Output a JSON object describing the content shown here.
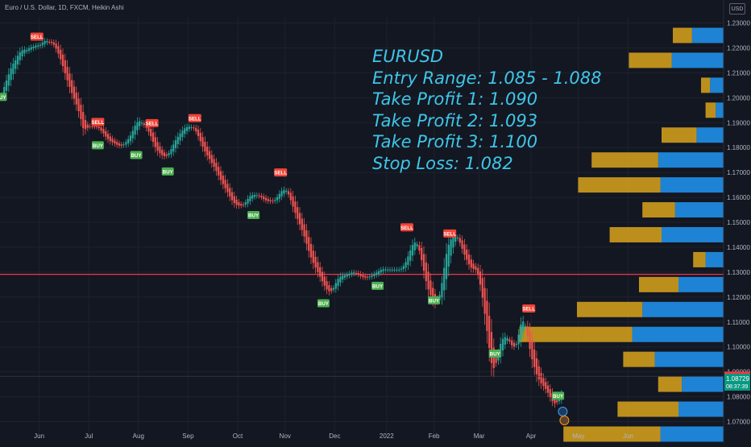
{
  "header": {
    "title": "Euro / U.S. Dollar, 1D, FXCM, Heikin Ashi",
    "currency": "USD"
  },
  "annotation": {
    "lines": [
      "EURUSD",
      "Entry Range: 1.085 - 1.088",
      "Take Profit 1: 1.090",
      "Take Profit 2: 1.093",
      "Take Profit 3: 1.100",
      "Stop Loss: 1.082"
    ],
    "color": "#3fc6e8"
  },
  "colors": {
    "background": "#131722",
    "grid": "#1e222d",
    "up": "#26a69a",
    "down": "#ef5350",
    "hline": "#f23645",
    "buy": "#4caf50",
    "sell": "#f44336",
    "vp_up": "#2196f3",
    "vp_down": "#dba51c",
    "text": "#b2b5be"
  },
  "chart_data": {
    "type": "candlestick",
    "title": "Euro / U.S. Dollar, 1D, FXCM, Heikin Ashi",
    "y_axis": {
      "ticks": [
        "1.23000",
        "1.22000",
        "1.21000",
        "1.20000",
        "1.19000",
        "1.18000",
        "1.17000",
        "1.16000",
        "1.15000",
        "1.14000",
        "1.13000",
        "1.12000",
        "1.11000",
        "1.10000",
        "1.09000",
        "1.08000",
        "1.07000"
      ],
      "range": [
        1.0675,
        1.2345
      ],
      "scale": "linear"
    },
    "x_axis": {
      "ticks": [
        "Jun",
        "Jul",
        "Aug",
        "Sep",
        "Oct",
        "Nov",
        "Dec",
        "2022",
        "Feb",
        "Mar",
        "Apr",
        "May",
        "Jun"
      ],
      "tick_dates": [
        "2021-06-01",
        "2021-07-01",
        "2021-08-01",
        "2021-09-01",
        "2021-10-01",
        "2021-11-01",
        "2021-12-01",
        "2022-01-01",
        "2022-02-01",
        "2022-03-01",
        "2022-04-01",
        "2022-05-01",
        "2022-06-01"
      ]
    },
    "start_date": "2021-05-07",
    "series_close": [
      1.2012,
      1.2043,
      1.2069,
      1.2094,
      1.2118,
      1.2137,
      1.215,
      1.2168,
      1.2182,
      1.219,
      1.2193,
      1.2191,
      1.2198,
      1.2203,
      1.2205,
      1.2209,
      1.221,
      1.2212,
      1.2221,
      1.2228,
      1.2227,
      1.2224,
      1.222,
      1.2213,
      1.2197,
      1.2177,
      1.2154,
      1.2127,
      1.2098,
      1.207,
      1.2044,
      1.2019,
      1.1996,
      1.1973,
      1.1946,
      1.1914,
      1.1878,
      1.1874,
      1.1879,
      1.1885,
      1.1885,
      1.1884,
      1.1883,
      1.1878,
      1.1868,
      1.1857,
      1.1844,
      1.1834,
      1.1826,
      1.1821,
      1.1816,
      1.1811,
      1.1808,
      1.1807,
      1.1813,
      1.1822,
      1.1834,
      1.1848,
      1.1867,
      1.1888,
      1.1902,
      1.1906,
      1.19,
      1.189,
      1.1879,
      1.1864,
      1.1845,
      1.1823,
      1.1802,
      1.1787,
      1.1777,
      1.1769,
      1.1765,
      1.1766,
      1.1778,
      1.1794,
      1.1812,
      1.1829,
      1.1843,
      1.1856,
      1.1868,
      1.1877,
      1.1882,
      1.1884,
      1.1882,
      1.1877,
      1.1865,
      1.1846,
      1.1825,
      1.1804,
      1.1784,
      1.1768,
      1.1754,
      1.1738,
      1.1723,
      1.1706,
      1.1688,
      1.167,
      1.1653,
      1.1637,
      1.1621,
      1.1604,
      1.1589,
      1.1577,
      1.157,
      1.1567,
      1.1567,
      1.157,
      1.158,
      1.1594,
      1.1605,
      1.1609,
      1.161,
      1.1609,
      1.1606,
      1.16,
      1.1593,
      1.1588,
      1.1585,
      1.1584,
      1.1585,
      1.159,
      1.1601,
      1.1614,
      1.1625,
      1.163,
      1.1627,
      1.1612,
      1.1589,
      1.1563,
      1.1538,
      1.1514,
      1.1492,
      1.1469,
      1.1443,
      1.1414,
      1.1385,
      1.1359,
      1.1337,
      1.1318,
      1.13,
      1.1282,
      1.1263,
      1.1246,
      1.1231,
      1.1223,
      1.1224,
      1.1237,
      1.1256,
      1.1273,
      1.1282,
      1.1286,
      1.1287,
      1.129,
      1.1294,
      1.1298,
      1.1299,
      1.1296,
      1.129,
      1.1284,
      1.128,
      1.1278,
      1.1279,
      1.1282,
      1.1287,
      1.1293,
      1.1298,
      1.1304,
      1.1309,
      1.1312,
      1.1311,
      1.131,
      1.131,
      1.131,
      1.131,
      1.131,
      1.131,
      1.1314,
      1.1324,
      1.134,
      1.1363,
      1.1387,
      1.1409,
      1.1419,
      1.1412,
      1.1386,
      1.1348,
      1.1305,
      1.1264,
      1.1231,
      1.1207,
      1.1188,
      1.1176,
      1.1181,
      1.1208,
      1.1256,
      1.1317,
      1.1373,
      1.141,
      1.1431,
      1.1445,
      1.1449,
      1.1439,
      1.1418,
      1.1394,
      1.137,
      1.135,
      1.1331,
      1.1318,
      1.1313,
      1.1309,
      1.1289,
      1.125,
      1.1197,
      1.1133,
      1.1064,
      1.0995,
      1.0935,
      1.0915,
      1.0935,
      1.0974,
      1.1012,
      1.1032,
      1.1039,
      1.1035,
      1.1022,
      1.1006,
      1.1001,
      1.1012,
      1.1049,
      1.109,
      1.1102,
      1.1084,
      1.1043,
      1.0992,
      1.095,
      1.0919,
      1.089,
      1.0869,
      1.0854,
      1.0843,
      1.0831,
      1.0816,
      1.0799,
      1.0782,
      1.0773,
      1.0778,
      1.0793,
      1.0811
    ],
    "last_price": "1.08729",
    "countdown": "08:37:39",
    "prev_price_label": "1.08817",
    "horizontal_line": 1.1291,
    "signals": [
      {
        "label": "SELL",
        "date": "2021-05-31",
        "price": 1.2245
      },
      {
        "label": "BUY",
        "date": "2021-05-07",
        "price": 1.2003
      },
      {
        "label": "SELL",
        "date": "2021-07-07",
        "price": 1.1903
      },
      {
        "label": "BUY",
        "date": "2021-07-07",
        "price": 1.1809
      },
      {
        "label": "BUY",
        "date": "2021-07-30",
        "price": 1.177
      },
      {
        "label": "SELL",
        "date": "2021-08-10",
        "price": 1.1898
      },
      {
        "label": "BUY",
        "date": "2021-08-19",
        "price": 1.1704
      },
      {
        "label": "SELL",
        "date": "2021-09-06",
        "price": 1.1918
      },
      {
        "label": "BUY",
        "date": "2021-10-12",
        "price": 1.1529
      },
      {
        "label": "SELL",
        "date": "2021-10-28",
        "price": 1.17
      },
      {
        "label": "BUY",
        "date": "2021-11-24",
        "price": 1.1175
      },
      {
        "label": "BUY",
        "date": "2021-12-28",
        "price": 1.1245
      },
      {
        "label": "SELL",
        "date": "2022-01-14",
        "price": 1.148
      },
      {
        "label": "BUY",
        "date": "2022-02-01",
        "price": 1.1187
      },
      {
        "label": "SELL",
        "date": "2022-02-10",
        "price": 1.1455
      },
      {
        "label": "BUY",
        "date": "2022-03-10",
        "price": 1.0973
      },
      {
        "label": "SELL",
        "date": "2022-03-31",
        "price": 1.1154
      },
      {
        "label": "BUY",
        "date": "2022-04-19",
        "price": 1.0804
      }
    ],
    "volume_profile": [
      {
        "price": 1.225,
        "up": 0.28,
        "down": 0.17
      },
      {
        "price": 1.215,
        "up": 0.46,
        "down": 0.38
      },
      {
        "price": 1.205,
        "up": 0.12,
        "down": 0.08
      },
      {
        "price": 1.195,
        "up": 0.07,
        "down": 0.09
      },
      {
        "price": 1.185,
        "up": 0.24,
        "down": 0.31
      },
      {
        "price": 1.175,
        "up": 0.58,
        "down": 0.59
      },
      {
        "price": 1.165,
        "up": 0.56,
        "down": 0.73
      },
      {
        "price": 1.155,
        "up": 0.43,
        "down": 0.29
      },
      {
        "price": 1.145,
        "up": 0.55,
        "down": 0.46
      },
      {
        "price": 1.135,
        "up": 0.16,
        "down": 0.11
      },
      {
        "price": 1.125,
        "up": 0.4,
        "down": 0.35
      },
      {
        "price": 1.115,
        "up": 0.72,
        "down": 0.58
      },
      {
        "price": 1.105,
        "up": 0.81,
        "down": 1.0
      },
      {
        "price": 1.095,
        "up": 0.61,
        "down": 0.28
      },
      {
        "price": 1.085,
        "up": 0.37,
        "down": 0.21
      },
      {
        "price": 1.075,
        "up": 0.4,
        "down": 0.54
      },
      {
        "price": 1.065,
        "up": 0.56,
        "down": 0.86
      },
      {
        "price": 1.055,
        "up": 0.71,
        "down": 0.46
      },
      {
        "price": 1.045,
        "up": 0.54,
        "down": 0.39
      },
      {
        "price": 1.035,
        "up": 0.06,
        "down": 0.12
      }
    ]
  }
}
